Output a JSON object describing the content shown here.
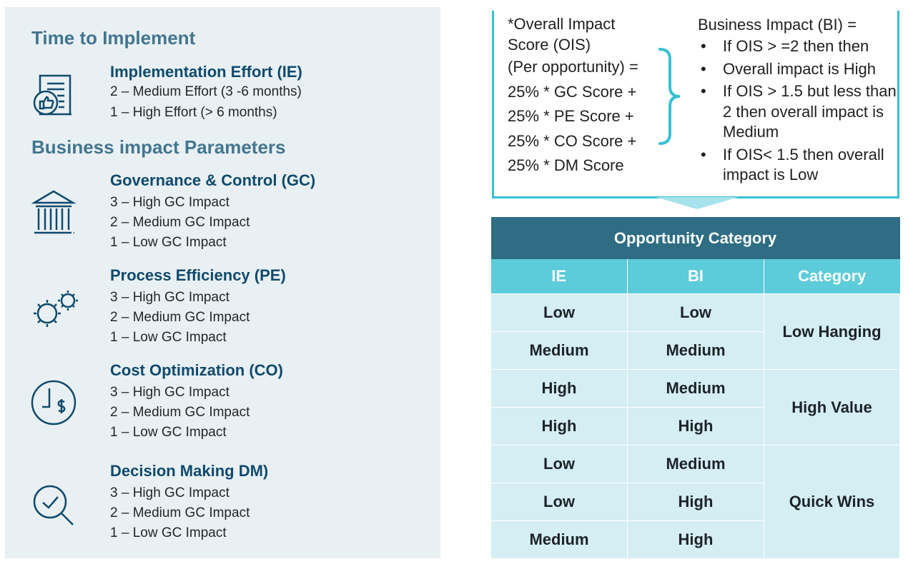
{
  "left": {
    "heading_time": "Time to Implement",
    "ie": {
      "title": "Implementation Effort (IE)",
      "lines": [
        "2 – Medium Effort (3 -6 months)",
        "1 – High Effort (> 6 months)"
      ]
    },
    "heading_bi": "Business impact Parameters",
    "params": [
      {
        "title": "Governance & Control (GC)",
        "icon": "bank-icon",
        "lines": [
          "3 – High GC Impact",
          "2 – Medium GC Impact",
          "1 – Low GC Impact"
        ]
      },
      {
        "title": "Process Efficiency (PE)",
        "icon": "gears-icon",
        "lines": [
          "3 – High GC Impact",
          "2 – Medium GC Impact",
          "1 – Low GC Impact"
        ]
      },
      {
        "title": "Cost Optimization (CO)",
        "icon": "clock-dollar-icon",
        "lines": [
          "3 – High GC Impact",
          "2 – Medium GC Impact",
          "1 – Low GC Impact"
        ]
      },
      {
        "title": "Decision Making DM)",
        "icon": "magnifier-check-icon",
        "lines": [
          "3 – High GC Impact",
          "2 – Medium GC Impact",
          "1 – Low GC Impact"
        ]
      }
    ]
  },
  "formula": {
    "lines": [
      "*Overall Impact",
      "Score (OIS)",
      "(Per opportunity) =",
      "25% * GC Score +",
      "25% * PE Score +",
      "25% * CO Score +",
      "25% * DM Score"
    ],
    "bi_title": "Business Impact (BI) =",
    "bi_items": [
      "If OIS > =2 then then",
      "Overall impact is High",
      "If OIS > 1.5 but less than 2 then overall impact is Medium",
      "If OIS< 1.5 then overall impact is Low"
    ],
    "bullet": "•"
  },
  "table": {
    "title": "Opportunity Category",
    "headers": [
      "IE",
      "BI",
      "Category"
    ],
    "rows": [
      [
        "Low",
        "Low"
      ],
      [
        "Medium",
        "Medium"
      ],
      [
        "High",
        "Medium"
      ],
      [
        "High",
        "High"
      ],
      [
        "Low",
        "Medium"
      ],
      [
        "Low",
        "High"
      ],
      [
        "Medium",
        "High"
      ]
    ],
    "categories": [
      "Low Hanging",
      "High Value",
      "Quick Wins"
    ]
  },
  "colors": {
    "heading": "#43768f",
    "param_title": "#0f4a6d",
    "table_title_bg": "#2e6d84",
    "table_header_bg": "#5ccbda",
    "table_cell_bg": "#d4eef3",
    "accent": "#37c0d3"
  }
}
